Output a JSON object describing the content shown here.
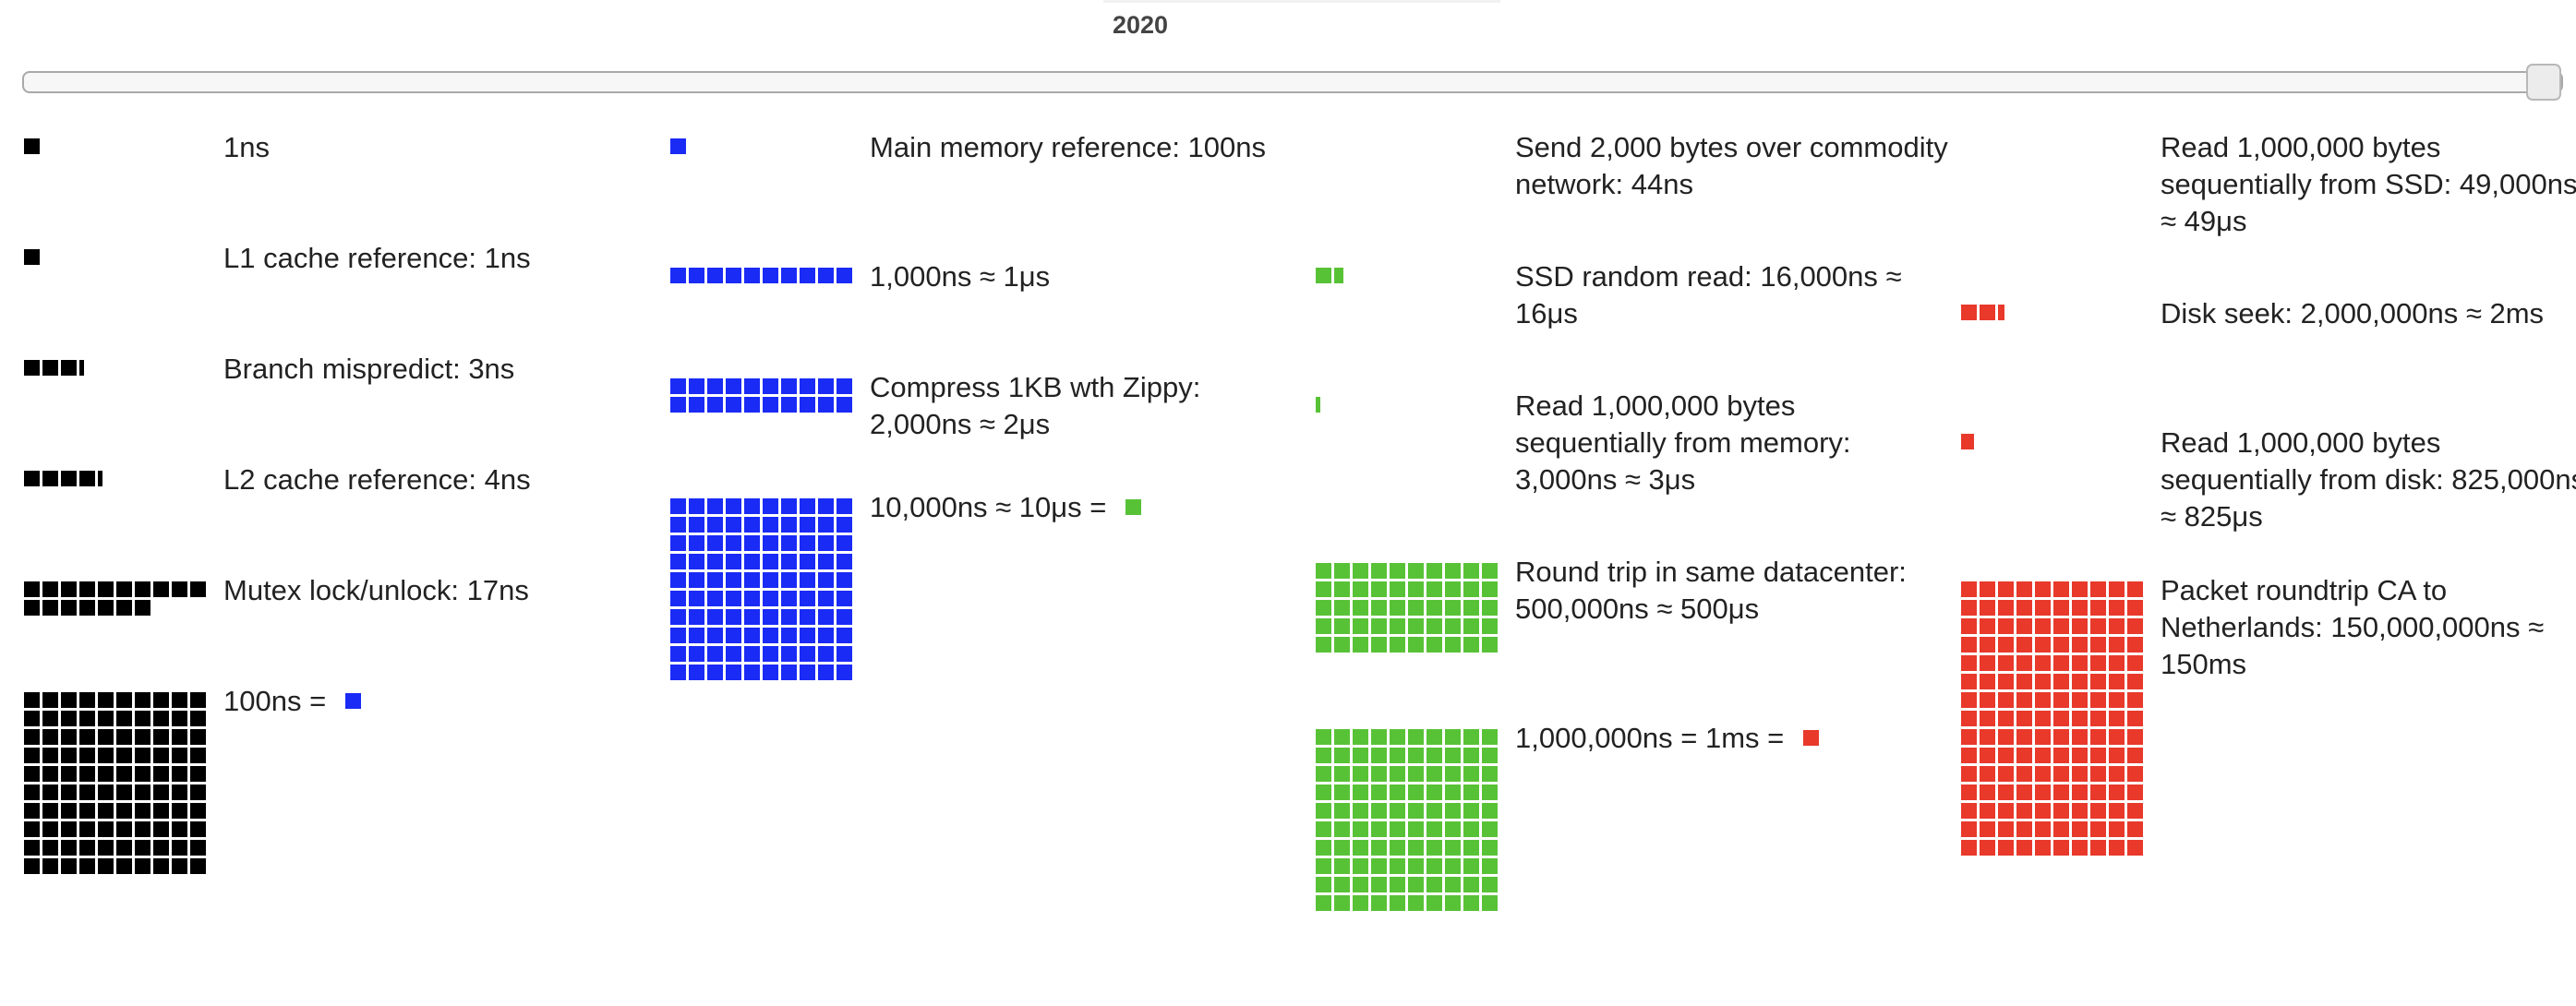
{
  "year": "2020",
  "colors": {
    "ns": "#000000",
    "hundred_ns": "#1a2bf5",
    "ten_us": "#58c236",
    "ms": "#e8392b"
  },
  "columns": [
    {
      "color": "#000000",
      "rows": [
        {
          "label": "1ns",
          "count": 1,
          "tail": 0
        },
        {
          "label": "L1 cache reference: 1ns",
          "count": 1,
          "tail": 0
        },
        {
          "label": "Branch mispredict: 3ns",
          "count": 3,
          "tail": 0.3
        },
        {
          "label": "L2 cache reference: 4ns",
          "count": 4,
          "tail": 0.3
        },
        {
          "label": "Mutex lock/unlock: 17ns",
          "count": 17,
          "tail": 0
        },
        {
          "label": "100ns = ",
          "count": 100,
          "tail": 0,
          "swatch": "#1a2bf5"
        }
      ]
    },
    {
      "color": "#1a2bf5",
      "rows": [
        {
          "label": "Main memory reference: 100ns",
          "count": 1,
          "tail": 0
        },
        {
          "label": "1,000ns ≈ 1μs",
          "count": 10,
          "tail": 0
        },
        {
          "label": "Compress 1KB wth Zippy: 2,000ns ≈ 2μs",
          "count": 20,
          "tail": 0
        },
        {
          "label": "10,000ns ≈ 10μs = ",
          "count": 100,
          "tail": 0,
          "swatch": "#58c236"
        }
      ]
    },
    {
      "color": "#58c236",
      "rows": [
        {
          "label": "Send 2,000 bytes over commodity network: 44ns",
          "count": 0,
          "tail": 0
        },
        {
          "label": "SSD random read: 16,000ns ≈ 16μs",
          "count": 1,
          "tail": 0.6
        },
        {
          "label": "Read 1,000,000 bytes sequentially from memory: 3,000ns ≈ 3μs",
          "count": 0,
          "tail": 0.3
        },
        {
          "label": "Round trip in same datacenter: 500,000ns ≈ 500μs",
          "count": 50,
          "tail": 0
        },
        {
          "label": "1,000,000ns = 1ms = ",
          "count": 100,
          "tail": 0,
          "swatch": "#e8392b"
        }
      ]
    },
    {
      "color": "#e8392b",
      "rows": [
        {
          "label": "Read 1,000,000 bytes sequentially from SSD: 49,000ns ≈ 49μs",
          "count": 0,
          "tail": 0
        },
        {
          "label": "Disk seek: 2,000,000ns ≈ 2ms",
          "count": 2,
          "tail": 0.4
        },
        {
          "label": "Read 1,000,000 bytes sequentially from disk: 825,000ns ≈ 825μs",
          "count": 0,
          "tail": 0.8
        },
        {
          "label": "Packet roundtrip CA to Netherlands: 150,000,000ns ≈ 150ms",
          "count": 150,
          "tail": 0
        }
      ]
    }
  ]
}
